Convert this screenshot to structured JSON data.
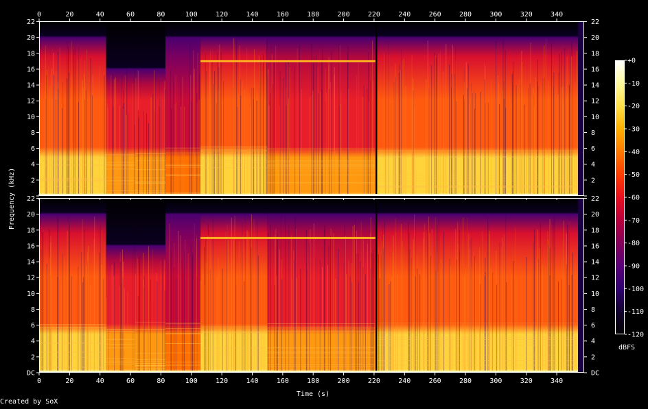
{
  "chart_data": {
    "type": "heatmap",
    "software": "Created by SoX",
    "xlabel": "Time (s)",
    "ylabel": "Frequency (kHz)",
    "colorbar_label": "dBFS",
    "x_ticks": [
      0,
      20,
      40,
      60,
      80,
      100,
      120,
      140,
      160,
      180,
      200,
      220,
      240,
      260,
      280,
      300,
      320,
      340
    ],
    "x_tick_labels": [
      "0",
      "20",
      "40",
      "60",
      "80",
      "100",
      "120",
      "140",
      "160",
      "180",
      "200",
      "220",
      "240",
      "260",
      "280",
      "300",
      "320",
      "340"
    ],
    "xlim": [
      0,
      358
    ],
    "y_ticks": [
      0,
      2,
      4,
      6,
      8,
      10,
      12,
      14,
      16,
      18,
      20,
      22
    ],
    "y_tick_labels": [
      "DC",
      "2",
      "4",
      "6",
      "8",
      "10",
      "12",
      "14",
      "16",
      "18",
      "20",
      "22"
    ],
    "ylim": [
      0,
      22.05
    ],
    "channels": [
      {
        "channel": 1,
        "shows_dc_label": false
      },
      {
        "channel": 2,
        "shows_dc_label": true
      }
    ],
    "colorbar_ticks": [
      0,
      -10,
      -20,
      -30,
      -40,
      -50,
      -60,
      -70,
      -80,
      -90,
      -100,
      -110,
      -120
    ],
    "colorbar_tick_labels": [
      "+0",
      "-10",
      "-20",
      "-30",
      "-40",
      "-50",
      "-60",
      "-70",
      "-80",
      "-90",
      "-100",
      "-110",
      "-120"
    ],
    "colorbar_range_dbfs": [
      -120,
      0
    ],
    "colormap": [
      "#ffffff",
      "#fffaa0",
      "#ffe04a",
      "#ffb000",
      "#ff7a00",
      "#ff3d00",
      "#e81020",
      "#b8003c",
      "#84005a",
      "#5a0078",
      "#300070",
      "#12002e",
      "#000000"
    ],
    "segments": [
      {
        "t_start": 0,
        "t_end": 44,
        "cutoff_khz": 20,
        "level": "loud"
      },
      {
        "t_start": 44,
        "t_end": 63,
        "cutoff_khz": 16,
        "level": "medium"
      },
      {
        "t_start": 63,
        "t_end": 83,
        "cutoff_khz": 16,
        "level": "medium"
      },
      {
        "t_start": 83,
        "t_end": 106,
        "cutoff_khz": 20,
        "level": "quiet"
      },
      {
        "t_start": 106,
        "t_end": 150,
        "cutoff_khz": 20,
        "level": "loud"
      },
      {
        "t_start": 150,
        "t_end": 221,
        "cutoff_khz": 20,
        "level": "medium"
      },
      {
        "t_start": 222,
        "t_end": 354,
        "cutoff_khz": 20,
        "level": "loud"
      }
    ],
    "tone_band": {
      "frequency_khz": 17,
      "t_start": 106,
      "t_end": 221
    },
    "gap": {
      "t_start": 221,
      "t_end": 222
    }
  }
}
